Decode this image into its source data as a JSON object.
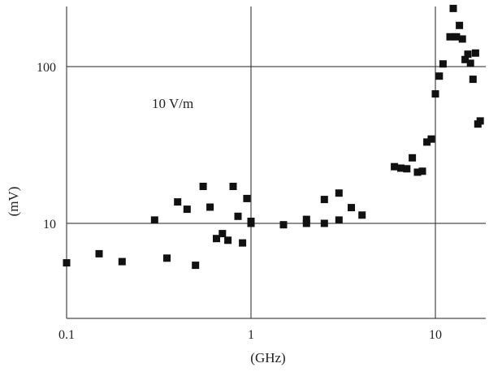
{
  "chart_data": {
    "type": "scatter",
    "title": "",
    "xlabel": "(GHz)",
    "ylabel": "(mV)",
    "xscale": "log",
    "yscale": "log",
    "xlim": [
      0.1,
      18
    ],
    "ylim": [
      2.5,
      250
    ],
    "grid": "major (decades)",
    "annotation": "10 V/m",
    "x_ticks": [
      {
        "value": 0.1,
        "label": "0.1"
      },
      {
        "value": 1,
        "label": "1"
      },
      {
        "value": 10,
        "label": "10"
      }
    ],
    "y_ticks": [
      {
        "value": 10,
        "label": "10"
      },
      {
        "value": 100,
        "label": "100"
      }
    ],
    "marker_color": "#111111",
    "marker": "square",
    "points": [
      [
        0.1,
        5.6
      ],
      [
        0.15,
        6.4
      ],
      [
        0.2,
        5.7
      ],
      [
        0.3,
        10.5
      ],
      [
        0.35,
        6.0
      ],
      [
        0.4,
        13.7
      ],
      [
        0.45,
        12.3
      ],
      [
        0.5,
        5.4
      ],
      [
        0.55,
        17.2
      ],
      [
        0.6,
        12.7
      ],
      [
        0.65,
        8.0
      ],
      [
        0.7,
        8.6
      ],
      [
        0.75,
        7.8
      ],
      [
        0.8,
        17.2
      ],
      [
        0.85,
        11.1
      ],
      [
        0.9,
        7.5
      ],
      [
        0.95,
        14.4
      ],
      [
        1.0,
        10.0
      ],
      [
        1.0,
        10.3
      ],
      [
        1.5,
        9.8
      ],
      [
        2.0,
        10.0
      ],
      [
        2.0,
        10.6
      ],
      [
        2.5,
        10.0
      ],
      [
        2.5,
        14.2
      ],
      [
        3.0,
        10.5
      ],
      [
        3.0,
        15.6
      ],
      [
        3.5,
        12.6
      ],
      [
        4.0,
        11.3
      ],
      [
        6.0,
        23.0
      ],
      [
        6.5,
        22.5
      ],
      [
        7.0,
        22.3
      ],
      [
        7.5,
        26.2
      ],
      [
        8.0,
        21.2
      ],
      [
        8.5,
        21.5
      ],
      [
        9.0,
        33.0
      ],
      [
        9.5,
        34.5
      ],
      [
        10.0,
        67.0
      ],
      [
        10.5,
        87.0
      ],
      [
        11.0,
        104.0
      ],
      [
        12.0,
        155.0
      ],
      [
        12.5,
        235.0
      ],
      [
        13.0,
        155.0
      ],
      [
        13.5,
        183.0
      ],
      [
        14.0,
        150.0
      ],
      [
        14.5,
        111.0
      ],
      [
        15.0,
        120.0
      ],
      [
        15.5,
        105.0
      ],
      [
        16.0,
        83.0
      ],
      [
        16.5,
        122.0
      ],
      [
        17.0,
        43.0
      ],
      [
        17.5,
        45.0
      ]
    ]
  }
}
